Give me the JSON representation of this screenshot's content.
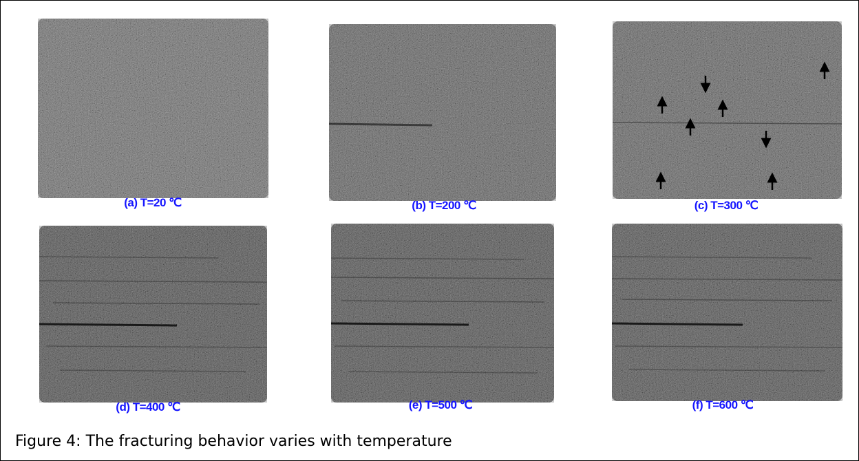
{
  "panels": [
    {
      "caption": "(a) T=20 ℃"
    },
    {
      "caption": "(b) T=200 ℃"
    },
    {
      "caption": "(c) T=300 ℃"
    },
    {
      "caption": "(d) T=400 ℃"
    },
    {
      "caption": "(e) T=500 ℃"
    },
    {
      "caption": "(f) T=600 ℃"
    }
  ],
  "figure_caption": "Figure 4:  The fracturing behavior varies with temperature"
}
